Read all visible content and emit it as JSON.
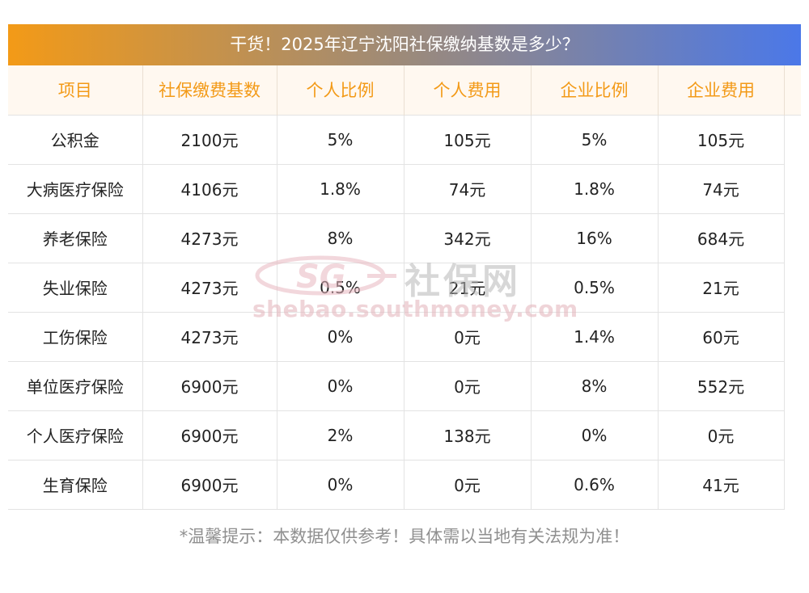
{
  "title": "干货！2025年辽宁沈阳社保缴纳基数是多少？",
  "table": {
    "headers": [
      "项目",
      "社保缴费基数",
      "个人比例",
      "个人费用",
      "企业比例",
      "企业费用"
    ],
    "rows": [
      [
        "公积金",
        "2100元",
        "5%",
        "105元",
        "5%",
        "105元"
      ],
      [
        "大病医疗保险",
        "4106元",
        "1.8%",
        "74元",
        "1.8%",
        "74元"
      ],
      [
        "养老保险",
        "4273元",
        "8%",
        "342元",
        "16%",
        "684元"
      ],
      [
        "失业保险",
        "4273元",
        "0.5%",
        "21元",
        "0.5%",
        "21元"
      ],
      [
        "工伤保险",
        "4273元",
        "0%",
        "0元",
        "1.4%",
        "60元"
      ],
      [
        "单位医疗保险",
        "6900元",
        "0%",
        "0元",
        "8%",
        "552元"
      ],
      [
        "个人医疗保险",
        "6900元",
        "2%",
        "138元",
        "0%",
        "0元"
      ],
      [
        "生育保险",
        "6900元",
        "0%",
        "0元",
        "0.6%",
        "41元"
      ]
    ]
  },
  "watermark": {
    "logo_text": "SG",
    "brand_cn": "社保网",
    "url": "shebao.southmoney.com"
  },
  "footnote": "*温馨提示：本数据仅供参考！具体需以当地有关法规为准！",
  "colors": {
    "header_text": "#f39a17",
    "gradient_start": "#f39a17",
    "gradient_end": "#4b78e8"
  }
}
